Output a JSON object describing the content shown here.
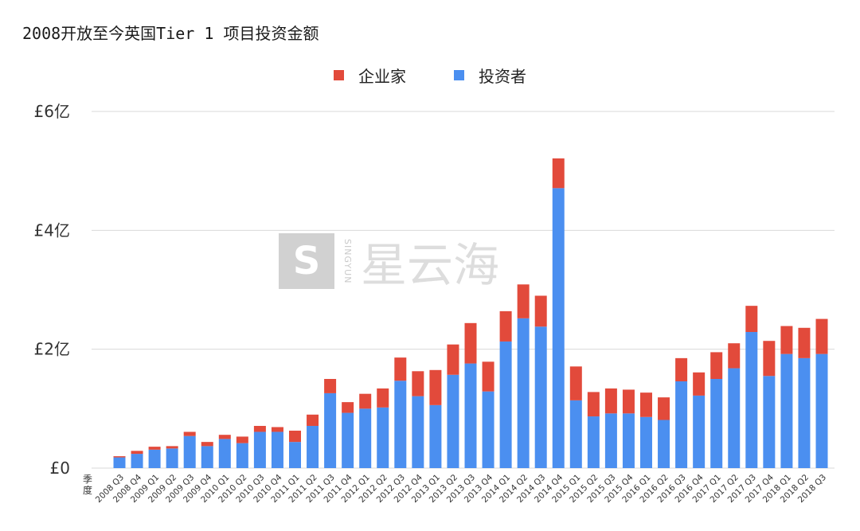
{
  "title": "2008开放至今英国Tier 1 项目投资金额",
  "watermark": {
    "logo_letter": "S",
    "english": "SINGYUN",
    "chinese": "星云海"
  },
  "colors": {
    "entrepreneur": "#e24a3b",
    "investor": "#4b8ff0",
    "grid": "#d9d9d9"
  },
  "chart_data": {
    "type": "bar",
    "stacked": true,
    "title": "2008开放至今英国Tier 1 项目投资金额",
    "xlabel": "季度",
    "ylabel": "",
    "ylim": [
      0,
      6
    ],
    "yticks": [
      0,
      2,
      4,
      6
    ],
    "ytick_labels": [
      "£0",
      "£2亿",
      "£4亿",
      "£6亿"
    ],
    "legend_position": "top-center",
    "categories": [
      "2008 Q3",
      "2008 Q4",
      "2009 Q1",
      "2009 Q2",
      "2009 Q3",
      "2009 Q4",
      "2010 Q1",
      "2010 Q2",
      "2010 Q3",
      "2010 Q4",
      "2011 Q1",
      "2011 Q2",
      "2011 Q3",
      "2011 Q4",
      "2012 Q1",
      "2012 Q2",
      "2012 Q3",
      "2012 Q4",
      "2013 Q1",
      "2013 Q2",
      "2013 Q3",
      "2013 Q4",
      "2014 Q1",
      "2014 Q2",
      "2014 Q3",
      "2014 Q4",
      "2015 Q1",
      "2015 Q2",
      "2015 Q3",
      "2015 Q4",
      "2016 Q1",
      "2016 Q2",
      "2016 Q3",
      "2016 Q4",
      "2017 Q1",
      "2017 Q2",
      "2017 Q3",
      "2017 Q4",
      "2018 Q1",
      "2018 Q2",
      "2018 Q3"
    ],
    "series": [
      {
        "name": "投资者",
        "color": "#4b8ff0",
        "values": [
          0.18,
          0.24,
          0.31,
          0.33,
          0.54,
          0.37,
          0.49,
          0.42,
          0.61,
          0.61,
          0.44,
          0.71,
          1.26,
          0.93,
          1.0,
          1.02,
          1.47,
          1.21,
          1.06,
          1.57,
          1.76,
          1.29,
          2.13,
          2.52,
          2.38,
          4.71,
          1.14,
          0.87,
          0.92,
          0.92,
          0.86,
          0.81,
          1.46,
          1.22,
          1.5,
          1.68,
          2.29,
          1.55,
          1.92,
          1.85,
          1.92
        ]
      },
      {
        "name": "企业家",
        "color": "#e24a3b",
        "values": [
          0.02,
          0.05,
          0.05,
          0.04,
          0.07,
          0.07,
          0.07,
          0.11,
          0.1,
          0.08,
          0.19,
          0.19,
          0.24,
          0.18,
          0.25,
          0.32,
          0.39,
          0.42,
          0.59,
          0.51,
          0.68,
          0.5,
          0.51,
          0.57,
          0.52,
          0.5,
          0.57,
          0.41,
          0.42,
          0.4,
          0.41,
          0.38,
          0.39,
          0.39,
          0.45,
          0.42,
          0.44,
          0.59,
          0.47,
          0.51,
          0.59
        ]
      }
    ]
  }
}
